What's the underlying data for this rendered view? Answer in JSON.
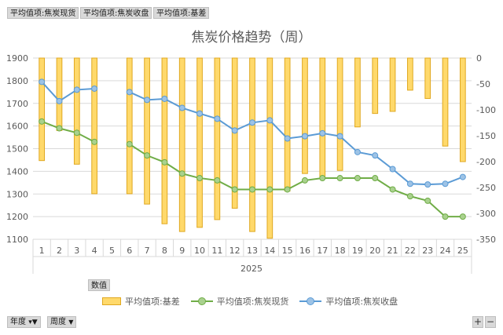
{
  "filters": {
    "chip1": "平均值项:焦炭现货",
    "chip2": "平均值项:焦炭收盘",
    "chip3": "平均值项:基差"
  },
  "values_label": "数值",
  "legend": {
    "basis": "平均值项:基差",
    "spot": "平均值项:焦炭现货",
    "close": "平均值项:焦炭收盘"
  },
  "controls": {
    "year": "年度",
    "week": "周度",
    "plus": "+",
    "minus": "−"
  },
  "colors": {
    "bar_fill": "#ffd96b",
    "bar_stroke": "#e0a820",
    "spot": "#70ad47",
    "close": "#5b9bd5"
  },
  "chart_data": {
    "type": "bar",
    "title": "焦炭价格趋势（周）",
    "xlabel": "2025",
    "x": [
      1,
      2,
      3,
      4,
      5,
      6,
      7,
      8,
      9,
      10,
      11,
      12,
      13,
      14,
      15,
      16,
      17,
      18,
      19,
      20,
      21,
      22,
      23,
      24,
      25
    ],
    "y_left_lim": [
      1100,
      1900
    ],
    "y_left_ticks": [
      1100,
      1200,
      1300,
      1400,
      1500,
      1600,
      1700,
      1800,
      1900
    ],
    "y_right_lim": [
      -350,
      0
    ],
    "y_right_ticks": [
      0,
      -50,
      -100,
      -150,
      -200,
      -250,
      -300,
      -350
    ],
    "series": [
      {
        "name": "平均值项:基差",
        "axis": "right",
        "type": "bar",
        "values": [
          -198,
          -140,
          -205,
          -262,
          null,
          -262,
          -282,
          -320,
          -335,
          -327,
          -312,
          -290,
          -335,
          -348,
          -257,
          -223,
          -230,
          -217,
          -133,
          -107,
          -103,
          -62,
          -78,
          -170,
          -200
        ]
      },
      {
        "name": "平均值项:焦炭现货",
        "axis": "left",
        "type": "line",
        "values": [
          1620,
          1590,
          1570,
          1530,
          null,
          1520,
          1470,
          1440,
          1390,
          1370,
          1360,
          1320,
          1320,
          1320,
          1320,
          1360,
          1370,
          1370,
          1370,
          1370,
          1320,
          1290,
          1270,
          1200,
          1200
        ]
      },
      {
        "name": "平均值项:焦炭收盘",
        "axis": "left",
        "type": "line",
        "values": [
          1795,
          1710,
          1760,
          1765,
          null,
          1750,
          1715,
          1720,
          1680,
          1655,
          1632,
          1580,
          1615,
          1625,
          1545,
          1555,
          1568,
          1555,
          1485,
          1470,
          1410,
          1345,
          1342,
          1345,
          1375
        ]
      }
    ]
  }
}
